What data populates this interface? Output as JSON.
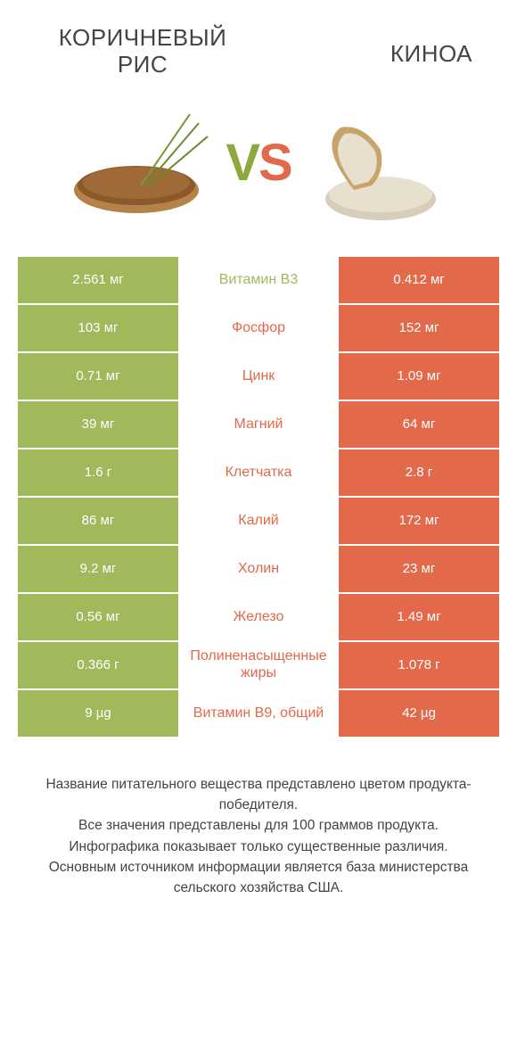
{
  "colors": {
    "left_bar": "#a0b95b",
    "right_bar": "#e2694a",
    "vs_v": "#8ca93e",
    "vs_s": "#e2694a",
    "text": "#444444",
    "cell_text": "#ffffff",
    "background": "#ffffff"
  },
  "header": {
    "left_title": "Коричневый\nрис",
    "right_title": "Киноа",
    "vs_v": "V",
    "vs_s": "S"
  },
  "rows": [
    {
      "left": "2.561 мг",
      "label": "Витамин B3",
      "right": "0.412 мг",
      "winner": "left"
    },
    {
      "left": "103 мг",
      "label": "Фосфор",
      "right": "152 мг",
      "winner": "right"
    },
    {
      "left": "0.71 мг",
      "label": "Цинк",
      "right": "1.09 мг",
      "winner": "right"
    },
    {
      "left": "39 мг",
      "label": "Магний",
      "right": "64 мг",
      "winner": "right"
    },
    {
      "left": "1.6 г",
      "label": "Клетчатка",
      "right": "2.8 г",
      "winner": "right"
    },
    {
      "left": "86 мг",
      "label": "Калий",
      "right": "172 мг",
      "winner": "right"
    },
    {
      "left": "9.2 мг",
      "label": "Холин",
      "right": "23 мг",
      "winner": "right"
    },
    {
      "left": "0.56 мг",
      "label": "Железо",
      "right": "1.49 мг",
      "winner": "right"
    },
    {
      "left": "0.366 г",
      "label": "Полиненасыщенные жиры",
      "right": "1.078 г",
      "winner": "right"
    },
    {
      "left": "9 µg",
      "label": "Витамин B9, общий",
      "right": "42 µg",
      "winner": "right"
    }
  ],
  "footnote": "Название питательного вещества представлено цветом продукта-победителя.\nВсе значения представлены для 100 граммов продукта.\nИнфографика показывает только существенные различия.\nОсновным источником информации является база министерства сельского хозяйства США."
}
